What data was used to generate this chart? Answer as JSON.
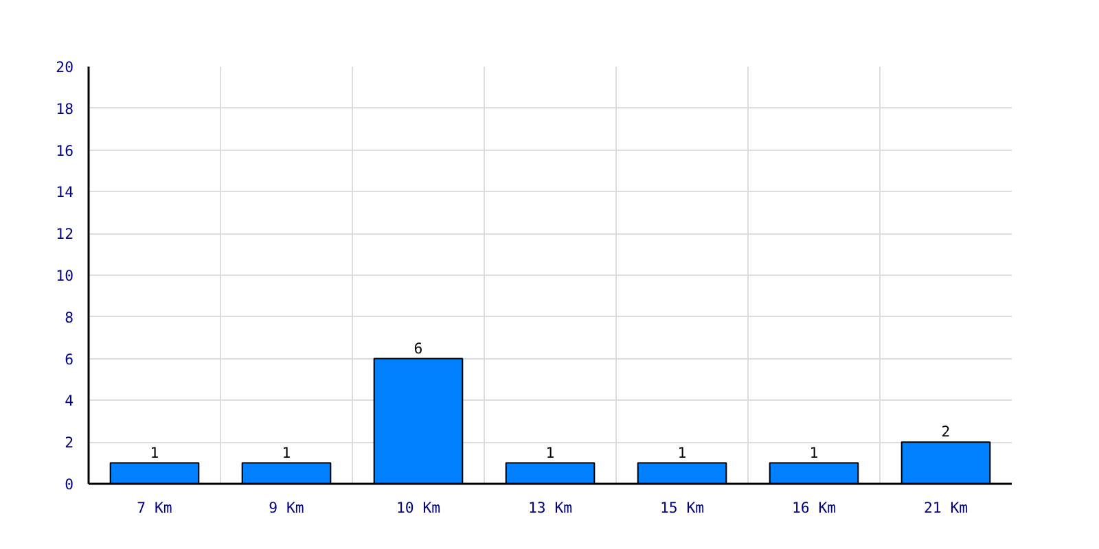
{
  "chart_data": {
    "type": "bar",
    "categories": [
      "7 Km",
      "9 Km",
      "10 Km",
      "13 Km",
      "15 Km",
      "16 Km",
      "21 Km"
    ],
    "values": [
      1,
      1,
      6,
      1,
      1,
      1,
      2
    ],
    "color": "#0080ff",
    "ylim": [
      0,
      20
    ],
    "yticks": [
      0,
      2,
      4,
      6,
      8,
      10,
      12,
      14,
      16,
      18,
      20
    ],
    "grid": true,
    "data_labels": true
  }
}
